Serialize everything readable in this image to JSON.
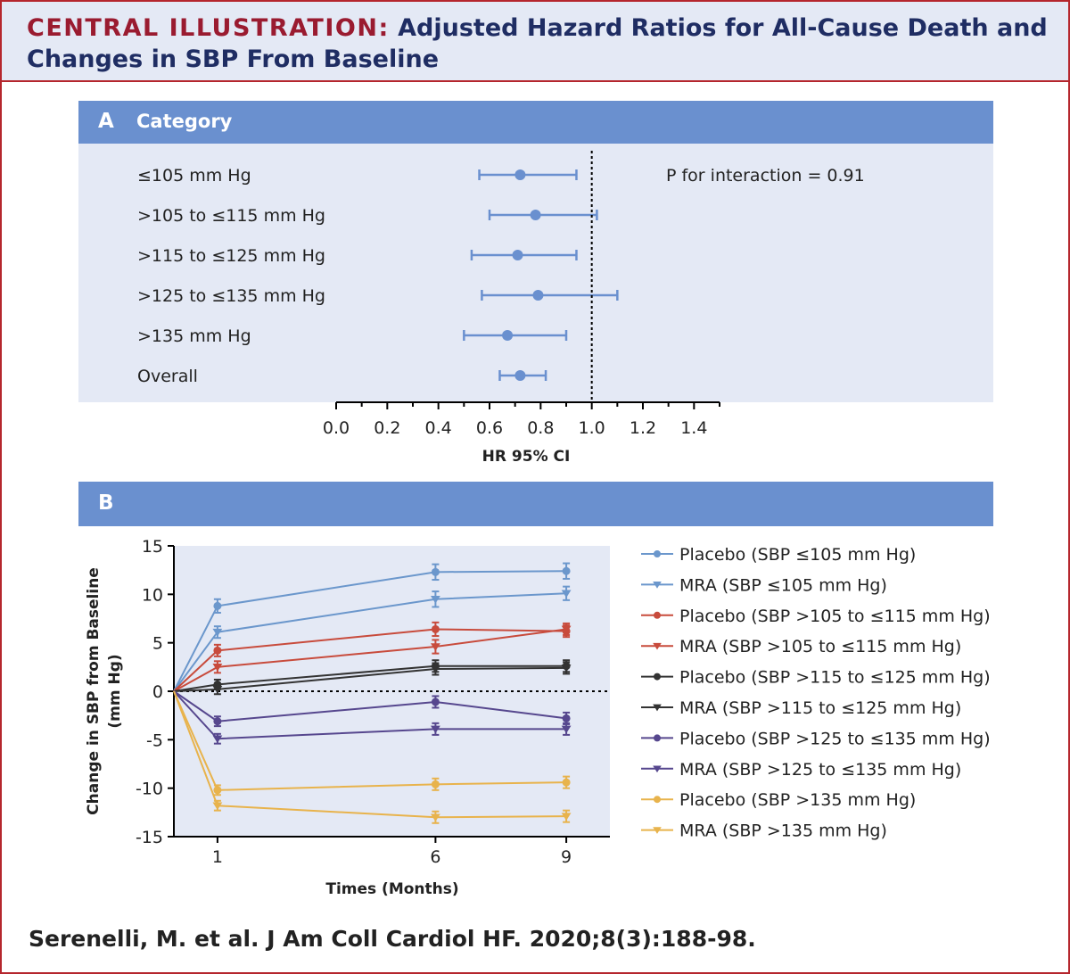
{
  "header": {
    "label": "CENTRAL ILLUSTRATION:",
    "title": "Adjusted Hazard Ratios for All-Cause Death and Changes in SBP From Baseline"
  },
  "panel_a": {
    "letter": "A",
    "heading": "Category"
  },
  "panel_b": {
    "letter": "B"
  },
  "footer": {
    "citation": "Serenelli, M. et al. J Am Coll Cardiol HF. 2020;8(3):188-98."
  },
  "colors": {
    "header_bg": "#e4e9f5",
    "accent_red": "#b5262d",
    "title_navy": "#1f2d63",
    "bar_blue": "#6a90cf",
    "plot_bg": "#e4e9f5"
  },
  "chart_data": [
    {
      "type": "forest",
      "title": "Category",
      "xlabel": "HR 95% CI",
      "xlim": [
        0,
        1.5
      ],
      "xticks": [
        "0.0",
        "0.2",
        "0.4",
        "0.6",
        "0.8",
        "1.0",
        "1.2",
        "1.4"
      ],
      "reference_line": 1.0,
      "annotation": "P for interaction = 0.91",
      "color": "#6a90cf",
      "rows": [
        {
          "label": "≤105 mm Hg",
          "hr": 0.72,
          "lo": 0.56,
          "hi": 0.94
        },
        {
          "label": ">105 to ≤115 mm Hg",
          "hr": 0.78,
          "lo": 0.6,
          "hi": 1.02
        },
        {
          "label": ">115 to ≤125 mm Hg",
          "hr": 0.71,
          "lo": 0.53,
          "hi": 0.94
        },
        {
          "label": ">125 to ≤135 mm Hg",
          "hr": 0.79,
          "lo": 0.57,
          "hi": 1.1
        },
        {
          "label": ">135 mm Hg",
          "hr": 0.67,
          "lo": 0.5,
          "hi": 0.9
        },
        {
          "label": "Overall",
          "hr": 0.72,
          "lo": 0.64,
          "hi": 0.82
        }
      ]
    },
    {
      "type": "line",
      "xlabel": "Times (Months)",
      "ylabel": "Change in SBP from Baseline (mm Hg)",
      "xticks": [
        1,
        6,
        9
      ],
      "xlim": [
        0,
        10
      ],
      "ylim": [
        -15,
        15
      ],
      "yticks": [
        15,
        10,
        5,
        0,
        -5,
        -10,
        -15
      ],
      "x": [
        0,
        1,
        6,
        9
      ],
      "series": [
        {
          "name": "Placebo (SBP ≤105 mm Hg)",
          "color": "#6b97cc",
          "marker": "circle",
          "values": [
            0,
            8.8,
            12.3,
            12.4
          ],
          "err": [
            0,
            0.7,
            0.8,
            0.8
          ]
        },
        {
          "name": "MRA (SBP ≤105 mm Hg)",
          "color": "#6b97cc",
          "marker": "triangle",
          "values": [
            0,
            6.1,
            9.5,
            10.1
          ],
          "err": [
            0,
            0.6,
            0.8,
            0.7
          ]
        },
        {
          "name": "Placebo (SBP >105 to ≤115 mm Hg)",
          "color": "#c84b3c",
          "marker": "circle",
          "values": [
            0,
            4.2,
            6.4,
            6.2
          ],
          "err": [
            0,
            0.6,
            0.7,
            0.6
          ]
        },
        {
          "name": "MRA (SBP >105 to ≤115 mm Hg)",
          "color": "#c84b3c",
          "marker": "triangle",
          "values": [
            0,
            2.5,
            4.6,
            6.4
          ],
          "err": [
            0,
            0.6,
            0.7,
            0.6
          ]
        },
        {
          "name": "Placebo (SBP >115 to ≤125 mm Hg)",
          "color": "#333333",
          "marker": "circle",
          "values": [
            0,
            0.7,
            2.6,
            2.6
          ],
          "err": [
            0,
            0.5,
            0.6,
            0.6
          ]
        },
        {
          "name": "MRA (SBP >115 to ≤125 mm Hg)",
          "color": "#333333",
          "marker": "triangle",
          "values": [
            0,
            0.2,
            2.3,
            2.4
          ],
          "err": [
            0,
            0.5,
            0.6,
            0.6
          ]
        },
        {
          "name": "Placebo (SBP >125 to ≤135 mm Hg)",
          "color": "#56478e",
          "marker": "circle",
          "values": [
            0,
            -3.1,
            -1.1,
            -2.8
          ],
          "err": [
            0,
            0.5,
            0.6,
            0.6
          ]
        },
        {
          "name": "MRA (SBP >125 to ≤135 mm Hg)",
          "color": "#56478e",
          "marker": "triangle",
          "values": [
            0,
            -4.9,
            -3.9,
            -3.9
          ],
          "err": [
            0,
            0.5,
            0.6,
            0.6
          ]
        },
        {
          "name": "Placebo (SBP >135 mm Hg)",
          "color": "#e8b34c",
          "marker": "circle",
          "values": [
            0,
            -10.2,
            -9.6,
            -9.4
          ],
          "err": [
            0,
            0.5,
            0.6,
            0.6
          ]
        },
        {
          "name": "MRA (SBP >135 mm Hg)",
          "color": "#e8b34c",
          "marker": "triangle",
          "values": [
            0,
            -11.8,
            -13.0,
            -12.9
          ],
          "err": [
            0,
            0.5,
            0.6,
            0.6
          ]
        }
      ]
    }
  ]
}
